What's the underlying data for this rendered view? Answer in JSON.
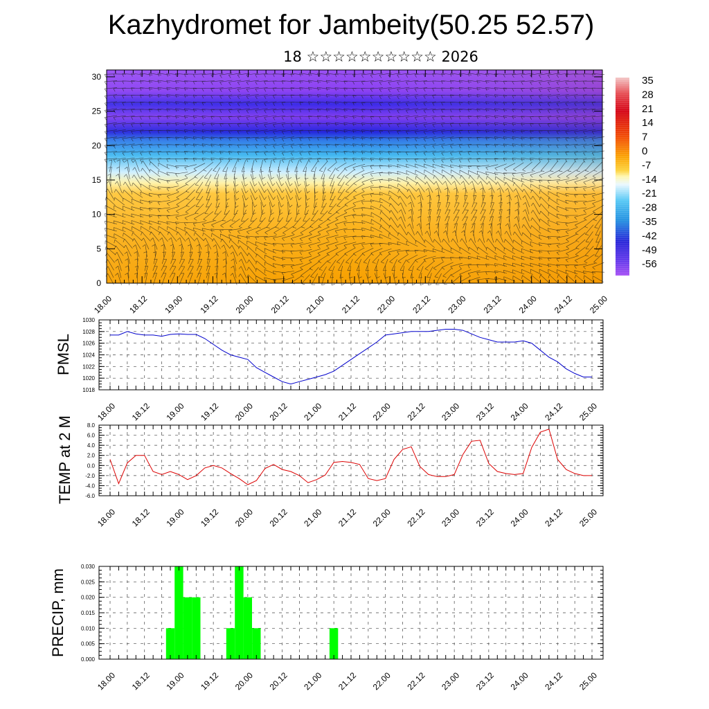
{
  "page": {
    "title": "Kazhydromet for Jambeity(50.25 52.57)",
    "subtitle": "18 ☆☆☆☆☆☆☆☆☆☆ 2026"
  },
  "x_tick_labels": [
    "18.00",
    "18.12",
    "19.00",
    "19.12",
    "20.00",
    "20.12",
    "21.00",
    "21.12",
    "22.00",
    "22.12",
    "23.00",
    "23.12",
    "24.00",
    "24.12",
    "25.00"
  ],
  "chart_data": [
    {
      "type": "heatmap",
      "name": "vertical cross-section",
      "x_labels": [
        "18.00",
        "18.12",
        "19.00",
        "19.12",
        "20.00",
        "20.12",
        "21.00",
        "21.12",
        "22.00",
        "22.12",
        "23.00",
        "23.12",
        "24.00",
        "24.12",
        "25.00"
      ],
      "ylim": [
        0,
        31
      ],
      "yticks": [
        0,
        5,
        10,
        15,
        20,
        25,
        30
      ],
      "colorbar_labels": [
        "35",
        "28",
        "21",
        "14",
        "7",
        "0",
        "-7",
        "-14",
        "-21",
        "-28",
        "-35",
        "-42",
        "-49",
        "-56"
      ],
      "colors": {
        "warm_base": "#f9a600",
        "warm_light": "#ffcf3a",
        "pale": "#fff6b0",
        "cyan": "#32b6f0",
        "blue": "#2a2ee6",
        "violet": "#8a3cf0"
      }
    },
    {
      "type": "line",
      "ylabel": "PMSL",
      "ylim": [
        1018,
        1030
      ],
      "yticks": [
        "1018",
        "1020",
        "1022",
        "1024",
        "1026",
        "1028",
        "1030"
      ],
      "color": "#0000cc",
      "x": [
        "18.00",
        "18.03",
        "18.06",
        "18.09",
        "18.12",
        "18.15",
        "18.18",
        "18.21",
        "19.00",
        "19.03",
        "19.06",
        "19.09",
        "19.12",
        "19.15",
        "19.18",
        "19.21",
        "20.00",
        "20.03",
        "20.06",
        "20.09",
        "20.12",
        "20.15",
        "20.18",
        "20.21",
        "21.00",
        "21.03",
        "21.06",
        "21.09",
        "21.12",
        "21.15",
        "21.18",
        "21.21",
        "22.00",
        "22.03",
        "22.06",
        "22.09",
        "22.12",
        "22.15",
        "22.18",
        "22.21",
        "23.00",
        "23.03",
        "23.06",
        "23.09",
        "23.12",
        "23.15",
        "23.18",
        "23.21",
        "24.00",
        "24.03",
        "24.06",
        "24.09",
        "24.12",
        "24.15",
        "24.18",
        "24.21",
        "25.00"
      ],
      "values": [
        1027.4,
        1027.4,
        1028.0,
        1027.6,
        1027.4,
        1027.4,
        1027.2,
        1027.5,
        1027.6,
        1027.5,
        1027.5,
        1026.8,
        1025.8,
        1024.8,
        1024.0,
        1023.6,
        1023.2,
        1021.8,
        1021.0,
        1020.2,
        1019.4,
        1019.0,
        1019.4,
        1019.8,
        1020.2,
        1020.6,
        1021.2,
        1022.2,
        1023.2,
        1024.2,
        1025.2,
        1026.2,
        1027.4,
        1027.6,
        1027.8,
        1028.0,
        1028.0,
        1028.0,
        1028.2,
        1028.4,
        1028.4,
        1028.2,
        1027.6,
        1027.0,
        1026.6,
        1026.2,
        1026.2,
        1026.2,
        1026.4,
        1026.0,
        1024.8,
        1023.6,
        1022.8,
        1021.6,
        1020.8,
        1020.2,
        1020.2
      ]
    },
    {
      "type": "line",
      "ylabel": "TEMP at 2 M",
      "ylim": [
        -6,
        8
      ],
      "yticks": [
        "-6.0",
        "-4.0",
        "-2.0",
        "0.0",
        "2.0",
        "4.0",
        "6.0",
        "8.0"
      ],
      "color": "#dd0000",
      "x": [
        "18.00",
        "18.03",
        "18.06",
        "18.09",
        "18.12",
        "18.15",
        "18.18",
        "18.21",
        "19.00",
        "19.03",
        "19.06",
        "19.09",
        "19.12",
        "19.15",
        "19.18",
        "19.21",
        "20.00",
        "20.03",
        "20.06",
        "20.09",
        "20.12",
        "20.15",
        "20.18",
        "20.21",
        "21.00",
        "21.03",
        "21.06",
        "21.09",
        "21.12",
        "21.15",
        "21.18",
        "21.21",
        "22.00",
        "22.03",
        "22.06",
        "22.09",
        "22.12",
        "22.15",
        "22.18",
        "22.21",
        "23.00",
        "23.03",
        "23.06",
        "23.09",
        "23.12",
        "23.15",
        "23.18",
        "23.21",
        "24.00",
        "24.03",
        "24.06",
        "24.09",
        "24.12",
        "24.15",
        "24.18",
        "24.21",
        "25.00"
      ],
      "values": [
        1.2,
        -3.6,
        0.5,
        2.0,
        2.0,
        -1.2,
        -1.8,
        -1.2,
        -1.8,
        -2.8,
        -2.0,
        -0.5,
        0.0,
        -0.5,
        -1.6,
        -2.6,
        -3.8,
        -3.0,
        -0.6,
        0.2,
        -0.8,
        -1.2,
        -2.0,
        -3.4,
        -2.8,
        -1.9,
        0.6,
        0.8,
        0.6,
        0.2,
        -2.6,
        -3.0,
        -2.6,
        1.2,
        3.2,
        3.7,
        -0.2,
        -1.8,
        -2.2,
        -2.2,
        -1.8,
        2.2,
        4.8,
        5.0,
        0.4,
        -1.2,
        -1.6,
        -1.8,
        -1.6,
        3.6,
        6.6,
        7.2,
        1.2,
        -0.8,
        -1.6,
        -2.0,
        -2.0
      ]
    },
    {
      "type": "bar",
      "ylabel": "PRECIP, mm",
      "ylim": [
        0,
        0.03
      ],
      "yticks": [
        "0.000",
        "0.005",
        "0.010",
        "0.015",
        "0.020",
        "0.025",
        "0.030"
      ],
      "color": "#00ff00",
      "x": [
        "18.21",
        "19.00",
        "19.03",
        "19.06",
        "19.18",
        "19.21",
        "20.00",
        "20.03",
        "21.06"
      ],
      "values": [
        0.01,
        0.03,
        0.02,
        0.02,
        0.01,
        0.03,
        0.02,
        0.01,
        0.01
      ]
    }
  ]
}
